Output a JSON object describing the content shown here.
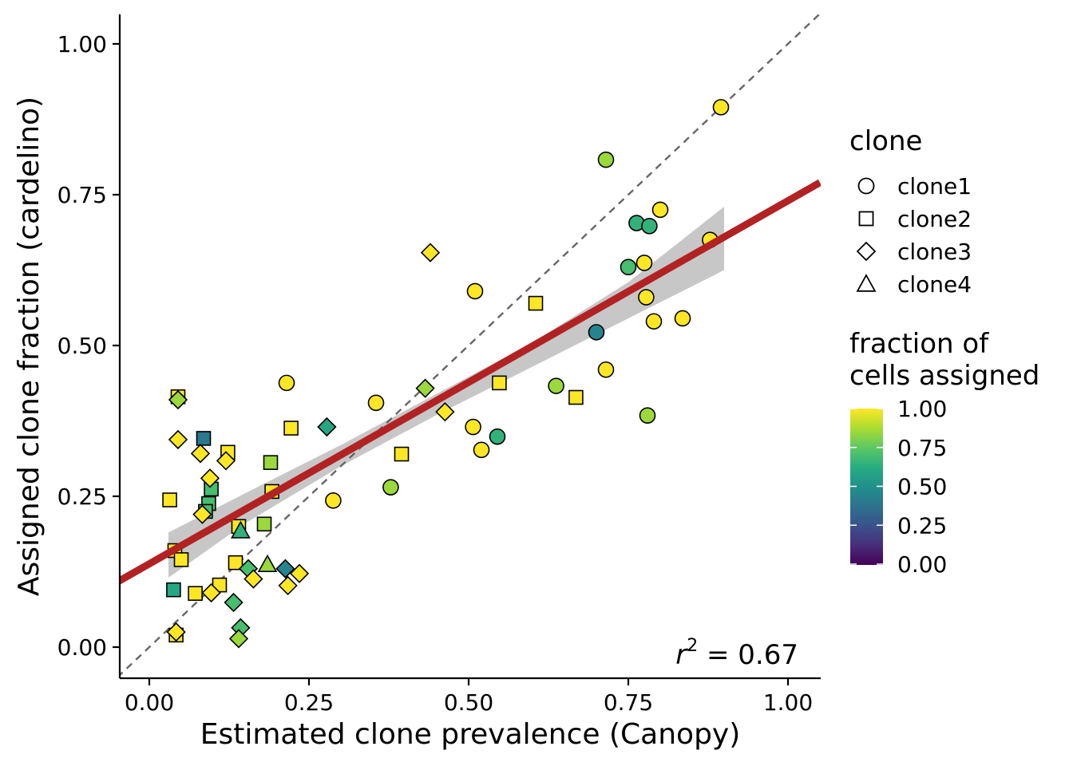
{
  "chart_data": {
    "type": "scatter",
    "xlabel": "Estimated clone prevalence (Canopy)",
    "ylabel": "Assigned clone fraction (cardelino)",
    "xlim": [
      -0.05,
      1.05
    ],
    "ylim": [
      -0.05,
      1.05
    ],
    "xticks": [
      "0.00",
      "0.25",
      "0.50",
      "0.75",
      "1.00"
    ],
    "yticks": [
      "0.00",
      "0.25",
      "0.50",
      "0.75",
      "1.00"
    ],
    "grid": false,
    "identity_line": true,
    "regression": {
      "intercept": 0.138,
      "slope": 0.602,
      "color": "#B22222",
      "ci_band": {
        "x": [
          0.03,
          0.15,
          0.3,
          0.45,
          0.6,
          0.75,
          0.9
        ],
        "lower": [
          0.115,
          0.205,
          0.3,
          0.385,
          0.465,
          0.545,
          0.625
        ],
        "upper": [
          0.19,
          0.255,
          0.335,
          0.42,
          0.505,
          0.605,
          0.73
        ]
      }
    },
    "annotation": {
      "text": "r",
      "sup": "2",
      "rest": " = 0.67"
    },
    "legend": {
      "shape_title": "clone",
      "shapes": [
        {
          "name": "clone1",
          "shape": "circle"
        },
        {
          "name": "clone2",
          "shape": "square"
        },
        {
          "name": "clone3",
          "shape": "diamond"
        },
        {
          "name": "clone4",
          "shape": "triangle"
        }
      ],
      "color_title_lines": [
        "fraction of",
        "cells assigned"
      ],
      "color_ticks": [
        "0.00",
        "0.25",
        "0.50",
        "0.75",
        "1.00"
      ],
      "colormap": "viridis",
      "placement": "right"
    },
    "points": [
      {
        "x": 0.895,
        "y": 0.895,
        "shape": "circle",
        "f": 1.0
      },
      {
        "x": 0.715,
        "y": 0.808,
        "shape": "circle",
        "f": 0.85
      },
      {
        "x": 0.8,
        "y": 0.725,
        "shape": "circle",
        "f": 1.0
      },
      {
        "x": 0.763,
        "y": 0.703,
        "shape": "circle",
        "f": 0.65
      },
      {
        "x": 0.783,
        "y": 0.698,
        "shape": "circle",
        "f": 0.65
      },
      {
        "x": 0.878,
        "y": 0.675,
        "shape": "circle",
        "f": 1.0
      },
      {
        "x": 0.775,
        "y": 0.637,
        "shape": "circle",
        "f": 1.0
      },
      {
        "x": 0.75,
        "y": 0.63,
        "shape": "circle",
        "f": 0.7
      },
      {
        "x": 0.51,
        "y": 0.59,
        "shape": "circle",
        "f": 1.0
      },
      {
        "x": 0.778,
        "y": 0.58,
        "shape": "circle",
        "f": 1.0
      },
      {
        "x": 0.835,
        "y": 0.545,
        "shape": "circle",
        "f": 1.0
      },
      {
        "x": 0.79,
        "y": 0.54,
        "shape": "circle",
        "f": 1.0
      },
      {
        "x": 0.7,
        "y": 0.522,
        "shape": "circle",
        "f": 0.45
      },
      {
        "x": 0.715,
        "y": 0.46,
        "shape": "circle",
        "f": 1.0
      },
      {
        "x": 0.215,
        "y": 0.438,
        "shape": "circle",
        "f": 1.0
      },
      {
        "x": 0.637,
        "y": 0.433,
        "shape": "circle",
        "f": 0.85
      },
      {
        "x": 0.355,
        "y": 0.405,
        "shape": "circle",
        "f": 1.0
      },
      {
        "x": 0.78,
        "y": 0.384,
        "shape": "circle",
        "f": 0.85
      },
      {
        "x": 0.507,
        "y": 0.365,
        "shape": "circle",
        "f": 1.0
      },
      {
        "x": 0.545,
        "y": 0.349,
        "shape": "circle",
        "f": 0.65
      },
      {
        "x": 0.52,
        "y": 0.327,
        "shape": "circle",
        "f": 1.0
      },
      {
        "x": 0.378,
        "y": 0.265,
        "shape": "circle",
        "f": 0.85
      },
      {
        "x": 0.288,
        "y": 0.243,
        "shape": "circle",
        "f": 1.0
      },
      {
        "x": 0.605,
        "y": 0.57,
        "shape": "square",
        "f": 1.0
      },
      {
        "x": 0.548,
        "y": 0.438,
        "shape": "square",
        "f": 1.0
      },
      {
        "x": 0.668,
        "y": 0.414,
        "shape": "square",
        "f": 1.0
      },
      {
        "x": 0.045,
        "y": 0.415,
        "shape": "square",
        "f": 1.0
      },
      {
        "x": 0.222,
        "y": 0.363,
        "shape": "square",
        "f": 1.0
      },
      {
        "x": 0.085,
        "y": 0.346,
        "shape": "square",
        "f": 0.4
      },
      {
        "x": 0.123,
        "y": 0.323,
        "shape": "square",
        "f": 1.0
      },
      {
        "x": 0.395,
        "y": 0.32,
        "shape": "square",
        "f": 1.0
      },
      {
        "x": 0.19,
        "y": 0.306,
        "shape": "square",
        "f": 0.85
      },
      {
        "x": 0.097,
        "y": 0.262,
        "shape": "square",
        "f": 0.7
      },
      {
        "x": 0.192,
        "y": 0.258,
        "shape": "square",
        "f": 1.0
      },
      {
        "x": 0.032,
        "y": 0.244,
        "shape": "square",
        "f": 1.0
      },
      {
        "x": 0.093,
        "y": 0.238,
        "shape": "square",
        "f": 0.7
      },
      {
        "x": 0.088,
        "y": 0.225,
        "shape": "square",
        "f": 0.7
      },
      {
        "x": 0.18,
        "y": 0.204,
        "shape": "square",
        "f": 0.85
      },
      {
        "x": 0.14,
        "y": 0.2,
        "shape": "square",
        "f": 1.0
      },
      {
        "x": 0.04,
        "y": 0.16,
        "shape": "square",
        "f": 1.0
      },
      {
        "x": 0.05,
        "y": 0.145,
        "shape": "square",
        "f": 1.0
      },
      {
        "x": 0.135,
        "y": 0.14,
        "shape": "square",
        "f": 1.0
      },
      {
        "x": 0.11,
        "y": 0.103,
        "shape": "square",
        "f": 1.0
      },
      {
        "x": 0.038,
        "y": 0.095,
        "shape": "square",
        "f": 0.6
      },
      {
        "x": 0.072,
        "y": 0.089,
        "shape": "square",
        "f": 1.0
      },
      {
        "x": 0.042,
        "y": 0.02,
        "shape": "square",
        "f": 1.0
      },
      {
        "x": 0.44,
        "y": 0.654,
        "shape": "diamond",
        "f": 1.0
      },
      {
        "x": 0.432,
        "y": 0.429,
        "shape": "diamond",
        "f": 0.85
      },
      {
        "x": 0.045,
        "y": 0.41,
        "shape": "diamond",
        "f": 0.85
      },
      {
        "x": 0.463,
        "y": 0.39,
        "shape": "diamond",
        "f": 1.0
      },
      {
        "x": 0.278,
        "y": 0.365,
        "shape": "diamond",
        "f": 0.6
      },
      {
        "x": 0.045,
        "y": 0.344,
        "shape": "diamond",
        "f": 1.0
      },
      {
        "x": 0.08,
        "y": 0.321,
        "shape": "diamond",
        "f": 1.0
      },
      {
        "x": 0.12,
        "y": 0.309,
        "shape": "diamond",
        "f": 1.0
      },
      {
        "x": 0.095,
        "y": 0.28,
        "shape": "diamond",
        "f": 1.0
      },
      {
        "x": 0.083,
        "y": 0.22,
        "shape": "diamond",
        "f": 1.0
      },
      {
        "x": 0.155,
        "y": 0.13,
        "shape": "diamond",
        "f": 0.7
      },
      {
        "x": 0.235,
        "y": 0.122,
        "shape": "diamond",
        "f": 1.0
      },
      {
        "x": 0.163,
        "y": 0.113,
        "shape": "diamond",
        "f": 1.0
      },
      {
        "x": 0.217,
        "y": 0.102,
        "shape": "diamond",
        "f": 1.0
      },
      {
        "x": 0.097,
        "y": 0.09,
        "shape": "diamond",
        "f": 1.0
      },
      {
        "x": 0.132,
        "y": 0.074,
        "shape": "diamond",
        "f": 0.7
      },
      {
        "x": 0.143,
        "y": 0.032,
        "shape": "diamond",
        "f": 0.7
      },
      {
        "x": 0.042,
        "y": 0.025,
        "shape": "diamond",
        "f": 1.0
      },
      {
        "x": 0.14,
        "y": 0.014,
        "shape": "diamond",
        "f": 0.85
      },
      {
        "x": 0.213,
        "y": 0.13,
        "shape": "diamond",
        "f": 0.45
      },
      {
        "x": 0.143,
        "y": 0.193,
        "shape": "triangle",
        "f": 0.65
      },
      {
        "x": 0.185,
        "y": 0.137,
        "shape": "triangle",
        "f": 0.85
      }
    ]
  }
}
